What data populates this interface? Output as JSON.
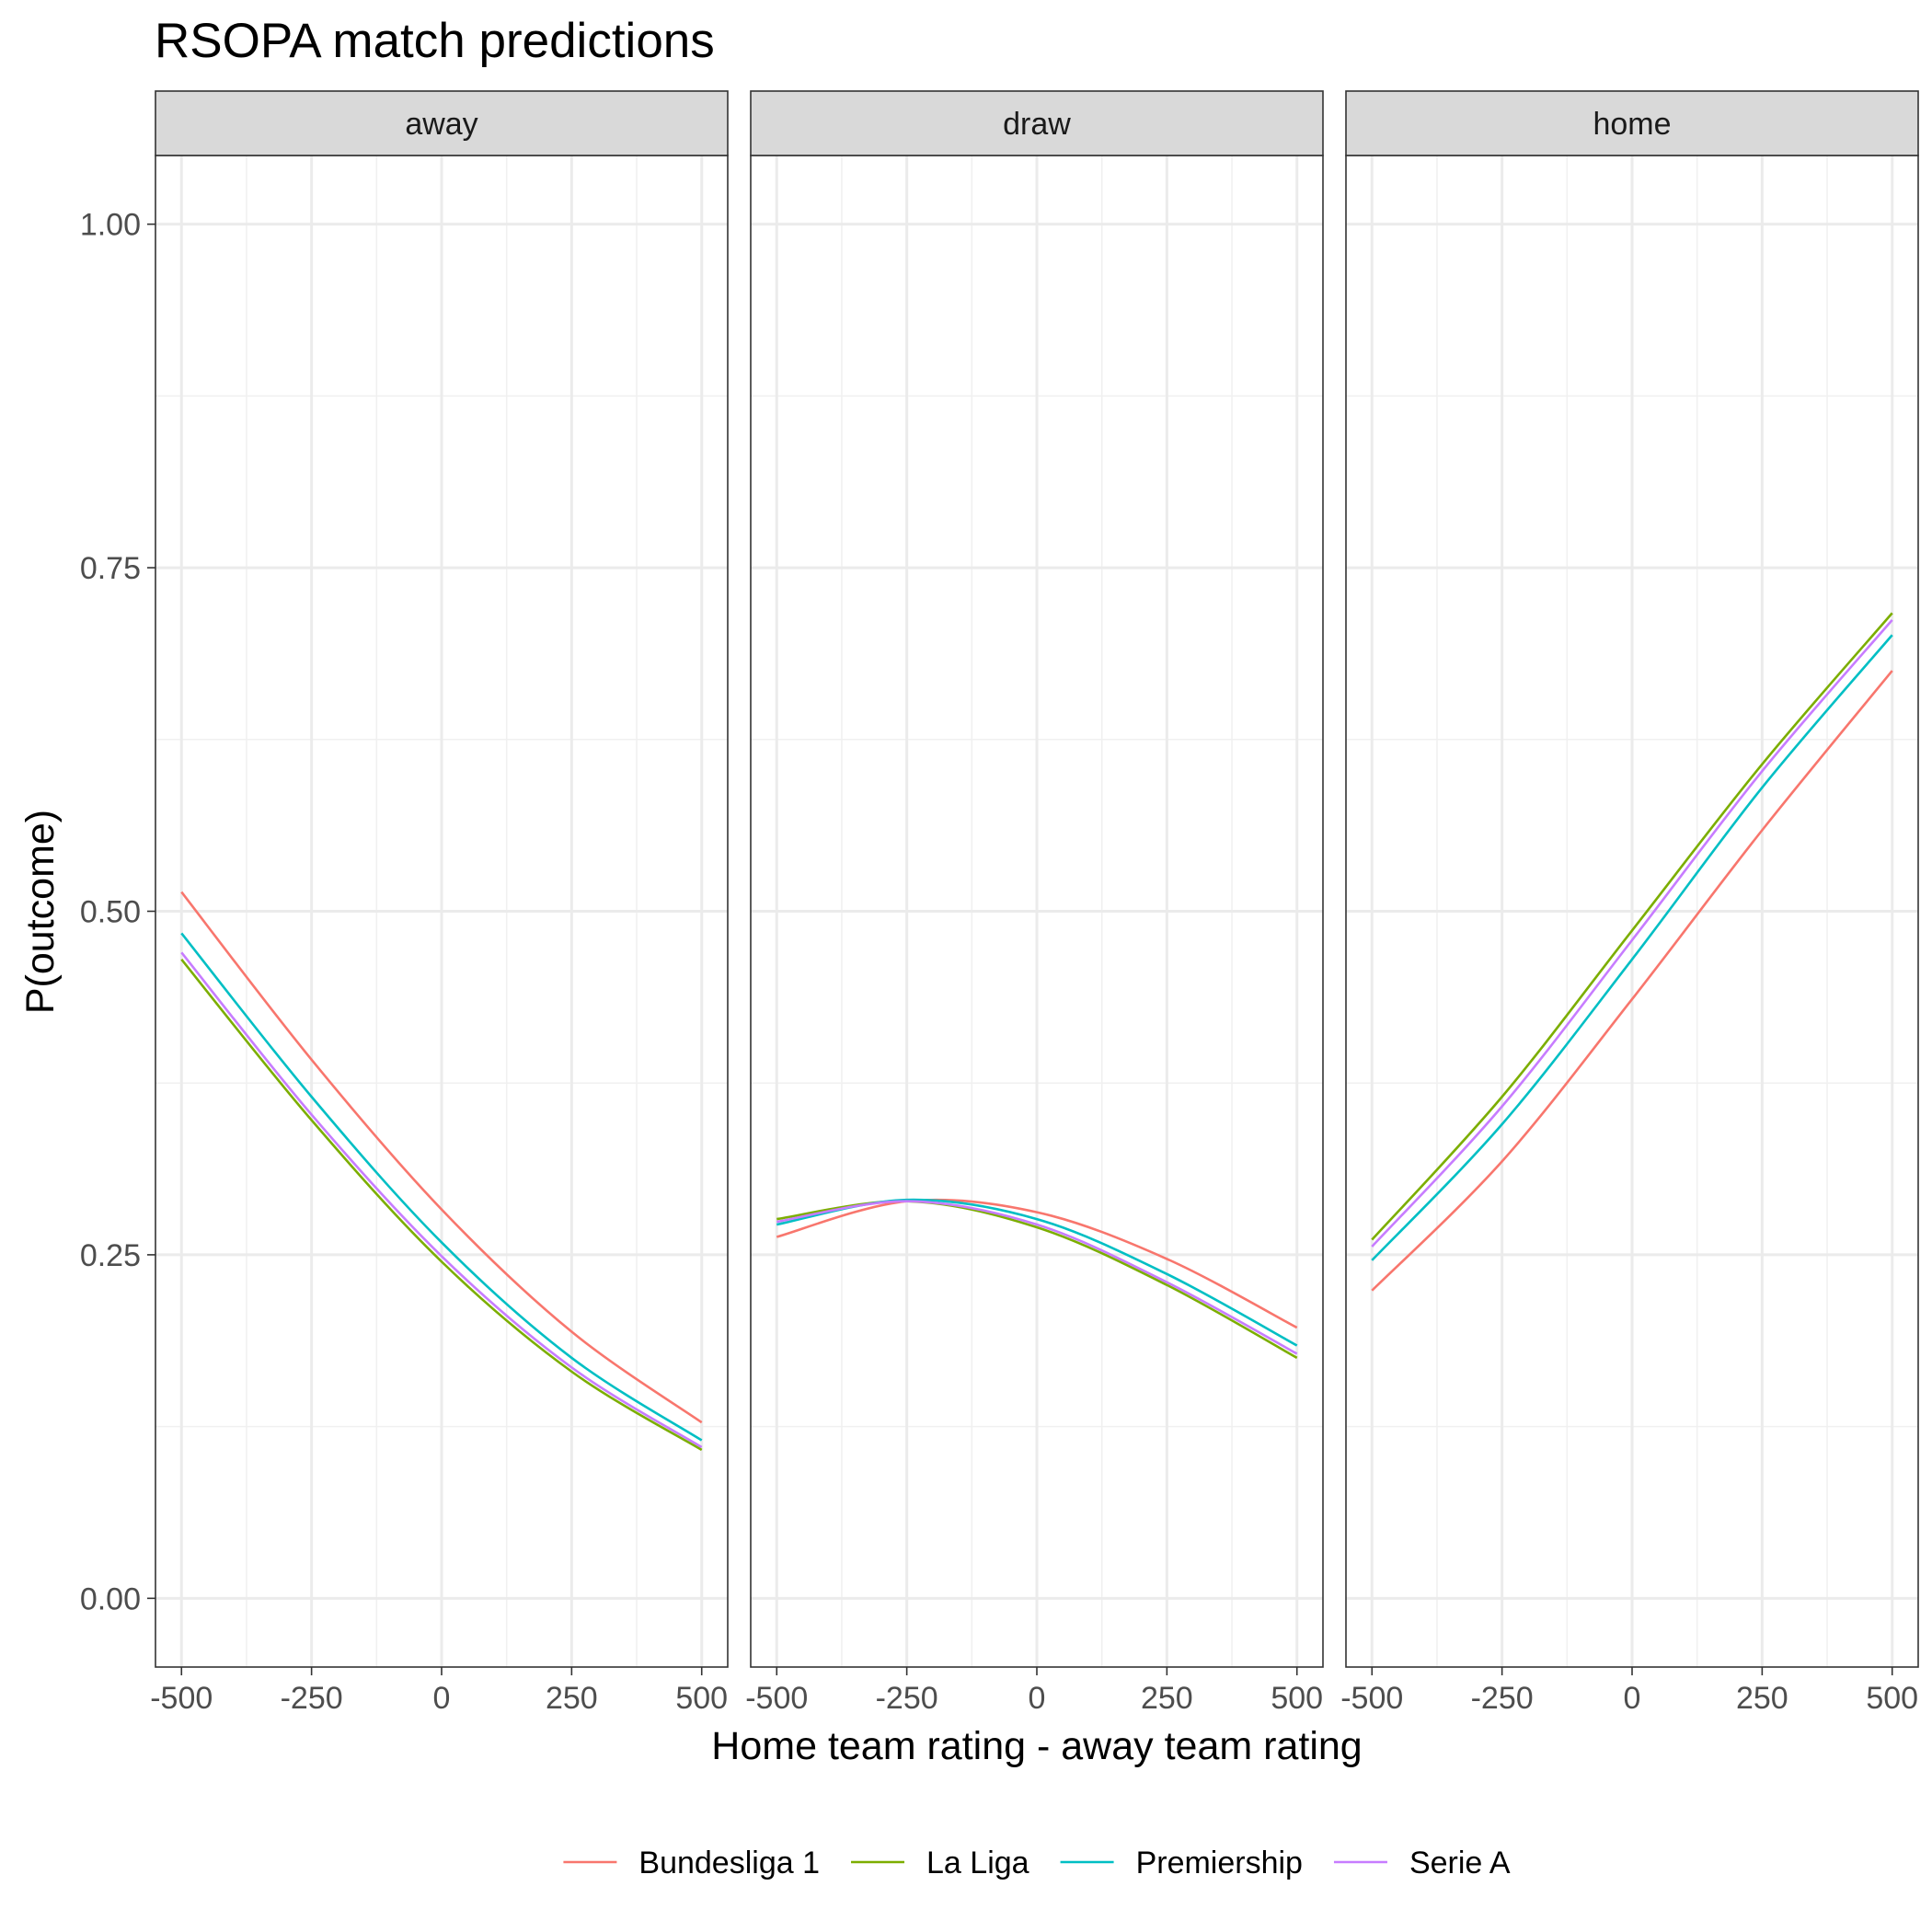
{
  "chart_data": {
    "type": "line",
    "title": "RSOPA match predictions",
    "xlabel": "Home team rating - away team rating",
    "ylabel": "P(outcome)",
    "xlim": [
      -550,
      550
    ],
    "ylim": [
      -0.05,
      1.05
    ],
    "x_ticks": [
      -500,
      -250,
      0,
      250,
      500
    ],
    "x_tick_labels": [
      "-500",
      "-250",
      "0",
      "250",
      "500"
    ],
    "y_ticks": [
      0,
      0.25,
      0.5,
      0.75,
      1
    ],
    "y_tick_labels": [
      "0.00",
      "0.25",
      "0.50",
      "0.75",
      "1.00"
    ],
    "grid": true,
    "legend_position": "bottom",
    "x": [
      -500,
      -250,
      0,
      250,
      500
    ],
    "panels": [
      {
        "label": "away",
        "series": [
          {
            "name": "Bundesliga 1",
            "values": [
              0.514,
              0.392,
              0.283,
              0.194,
              0.128
            ]
          },
          {
            "name": "La Liga",
            "values": [
              0.465,
              0.348,
              0.245,
              0.165,
              0.108
            ]
          },
          {
            "name": "Premiership",
            "values": [
              0.484,
              0.365,
              0.259,
              0.175,
              0.115
            ]
          },
          {
            "name": "Serie A",
            "values": [
              0.47,
              0.352,
              0.249,
              0.168,
              0.11
            ]
          }
        ]
      },
      {
        "label": "draw",
        "series": [
          {
            "name": "Bundesliga 1",
            "values": [
              0.263,
              0.289,
              0.281,
              0.247,
              0.197
            ]
          },
          {
            "name": "La Liga",
            "values": [
              0.276,
              0.289,
              0.27,
              0.228,
              0.175
            ]
          },
          {
            "name": "Premiership",
            "values": [
              0.272,
              0.29,
              0.276,
              0.236,
              0.184
            ]
          },
          {
            "name": "Serie A",
            "values": [
              0.274,
              0.289,
              0.272,
              0.23,
              0.178
            ]
          }
        ]
      },
      {
        "label": "home",
        "series": [
          {
            "name": "Bundesliga 1",
            "values": [
              0.224,
              0.318,
              0.436,
              0.559,
              0.675
            ]
          },
          {
            "name": "La Liga",
            "values": [
              0.261,
              0.365,
              0.486,
              0.607,
              0.717
            ]
          },
          {
            "name": "Premiership",
            "values": [
              0.246,
              0.345,
              0.465,
              0.59,
              0.701
            ]
          },
          {
            "name": "Serie A",
            "values": [
              0.256,
              0.358,
              0.479,
              0.602,
              0.712
            ]
          }
        ]
      }
    ],
    "colors": {
      "Bundesliga 1": "#F8766D",
      "La Liga": "#7CAE00",
      "Premiership": "#00BFC4",
      "Serie A": "#C77CFF"
    },
    "legend": [
      "Bundesliga 1",
      "La Liga",
      "Premiership",
      "Serie A"
    ]
  }
}
